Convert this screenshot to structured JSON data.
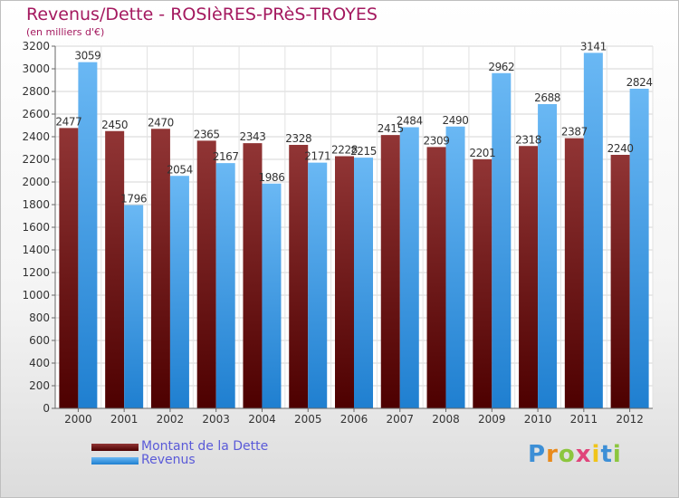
{
  "header": {
    "title": "Revenus/Dette - ROSIèRES-PRèS-TROYES",
    "subtitle": "(en milliers d'€)"
  },
  "legend": {
    "items": [
      {
        "label": "Montant de la Dette",
        "color": "#6b0a0a"
      },
      {
        "label": "Revenus",
        "color": "#3a9ae6"
      }
    ]
  },
  "logo": {
    "letters": [
      "P",
      "r",
      "o",
      "x",
      "i",
      "t",
      "i"
    ]
  },
  "chart_data": {
    "type": "bar",
    "categories": [
      "2000",
      "2001",
      "2002",
      "2003",
      "2004",
      "2005",
      "2006",
      "2007",
      "2008",
      "2009",
      "2010",
      "2011",
      "2012"
    ],
    "series": [
      {
        "name": "Montant de la Dette",
        "color": "#6b0a0a",
        "values": [
          2477,
          2450,
          2470,
          2365,
          2343,
          2328,
          2228,
          2415,
          2309,
          2201,
          2318,
          2387,
          2240
        ]
      },
      {
        "name": "Revenus",
        "color": "#3a9ae6",
        "values": [
          3059,
          1796,
          2054,
          2167,
          1986,
          2171,
          2215,
          2484,
          2490,
          2962,
          2688,
          3141,
          2824
        ]
      }
    ],
    "ylim": [
      0,
      3200
    ],
    "yticks": [
      0,
      200,
      400,
      600,
      800,
      1000,
      1200,
      1400,
      1600,
      1800,
      2000,
      2200,
      2400,
      2600,
      2800,
      3000,
      3200
    ],
    "grid": true,
    "legend_position": "bottom-left"
  }
}
